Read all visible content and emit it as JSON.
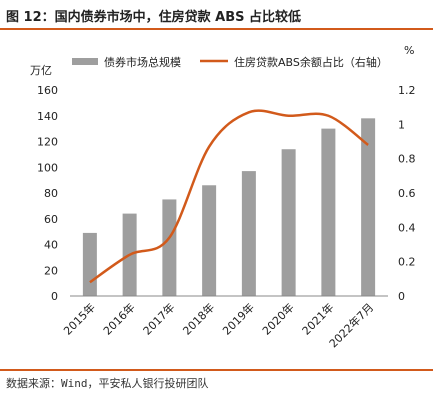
{
  "header": {
    "title": "图 12：国内债券市场中，住房贷款 ABS 占比较低"
  },
  "footer": {
    "source": "数据来源：Wind，平安私人银行投研团队"
  },
  "chart_data": {
    "type": "bar",
    "categories": [
      "2015年",
      "2016年",
      "2017年",
      "2018年",
      "2019年",
      "2020年",
      "2021年",
      "2022年7月"
    ],
    "series": [
      {
        "name": "债券市场总规模",
        "kind": "bar",
        "axis": "left",
        "values": [
          49,
          64,
          75,
          86,
          97,
          114,
          130,
          138
        ]
      },
      {
        "name": "住房贷款ABS余额占比（右轴）",
        "kind": "line",
        "axis": "right",
        "values": [
          0.08,
          0.24,
          0.34,
          0.87,
          1.07,
          1.05,
          1.05,
          0.88
        ]
      }
    ],
    "y_left": {
      "label": "万亿",
      "ylim": [
        0,
        160
      ],
      "ticks": [
        0,
        20,
        40,
        60,
        80,
        100,
        120,
        140,
        160
      ]
    },
    "y_right": {
      "label": "%",
      "ylim": [
        0,
        1.2
      ],
      "ticks": [
        "0",
        "0.2",
        "0.4",
        "0.6",
        "0.8",
        "1",
        "1.2"
      ]
    },
    "colors": {
      "bar": "#9e9e9e",
      "line": "#d25a1b"
    },
    "legend_position": "top",
    "grid": false
  }
}
